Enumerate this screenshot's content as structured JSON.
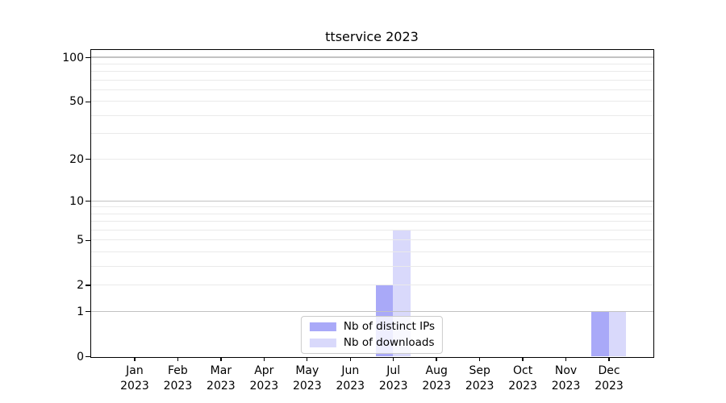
{
  "chart_data": {
    "type": "bar",
    "title": "ttservice 2023",
    "x_year": "2023",
    "categories": [
      "Jan",
      "Feb",
      "Mar",
      "Apr",
      "May",
      "Jun",
      "Jul",
      "Aug",
      "Sep",
      "Oct",
      "Nov",
      "Dec"
    ],
    "series": [
      {
        "name": "Nb of distinct IPs",
        "color": "#a9a9f8",
        "values": [
          0,
          0,
          0,
          0,
          0,
          0,
          2,
          0,
          0,
          0,
          0,
          1
        ]
      },
      {
        "name": "Nb of downloads",
        "color": "#d9d9fb",
        "values": [
          0,
          0,
          0,
          0,
          0,
          0,
          6,
          0,
          0,
          0,
          0,
          1
        ]
      }
    ],
    "yscale": "log1p",
    "ylim": [
      0,
      112
    ],
    "yticks": [
      0,
      1,
      2,
      5,
      10,
      20,
      50,
      100
    ],
    "major_gridlines": [
      1,
      10,
      100
    ],
    "minor_gridlines": [
      2,
      3,
      4,
      5,
      6,
      7,
      8,
      9,
      20,
      30,
      40,
      50,
      60,
      70,
      80,
      90
    ],
    "grid": true,
    "legend_position": "lower center",
    "colors": {
      "major_grid": "#c2c2c2",
      "minor_grid": "#eaeaea",
      "axis": "#000000",
      "background": "#ffffff"
    }
  }
}
